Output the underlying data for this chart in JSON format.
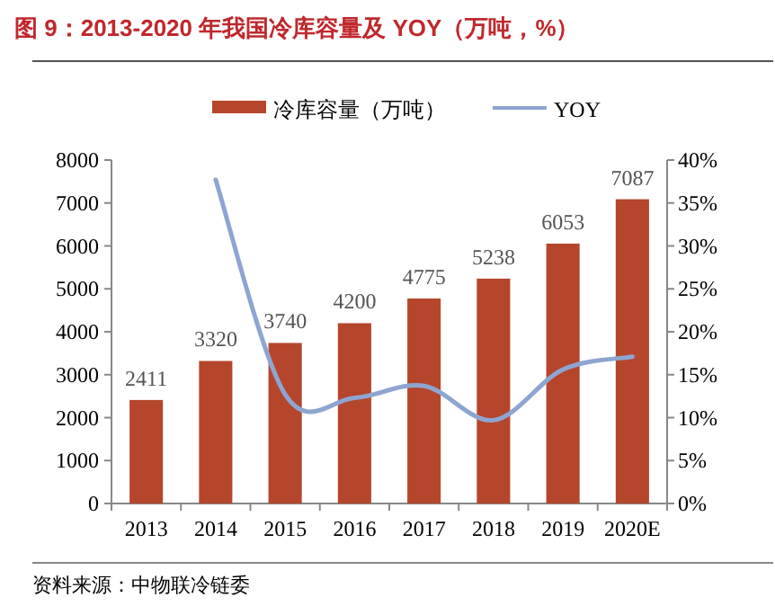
{
  "chart_data": {
    "type": "bar",
    "title": "图 9：2013-2020 年我国冷库容量及 YOY（万吨，%）",
    "categories": [
      "2013",
      "2014",
      "2015",
      "2016",
      "2017",
      "2018",
      "2019",
      "2020E"
    ],
    "series": [
      {
        "name": "冷库容量（万吨）",
        "color": "#b5462c",
        "values": [
          2411,
          3320,
          3740,
          4200,
          4775,
          5238,
          6053,
          7087
        ],
        "value_labels": [
          "2411",
          "3320",
          "3740",
          "4200",
          "4775",
          "5238",
          "6053",
          "7087"
        ]
      },
      {
        "name": "YOY",
        "type": "line",
        "axis": "y2",
        "color": "#8ea5d1",
        "values": [
          null,
          37.7,
          12.7,
          12.3,
          13.7,
          9.7,
          15.6,
          17.1
        ]
      }
    ],
    "legend": "top",
    "ylim": [
      0,
      8000
    ],
    "yticks": [
      0,
      1000,
      2000,
      3000,
      4000,
      5000,
      6000,
      7000,
      8000
    ],
    "y2lim": [
      0,
      40
    ],
    "y2ticks": [
      {
        "value": 0,
        "label": "0%"
      },
      {
        "value": 5,
        "label": "5%"
      },
      {
        "value": 10,
        "label": "10%"
      },
      {
        "value": 15,
        "label": "15%"
      },
      {
        "value": 20,
        "label": "20%"
      },
      {
        "value": 25,
        "label": "25%"
      },
      {
        "value": 30,
        "label": "30%"
      },
      {
        "value": 35,
        "label": "35%"
      },
      {
        "value": 40,
        "label": "40%"
      }
    ],
    "annotations": [
      "资料来源：中物联冷链委"
    ]
  }
}
